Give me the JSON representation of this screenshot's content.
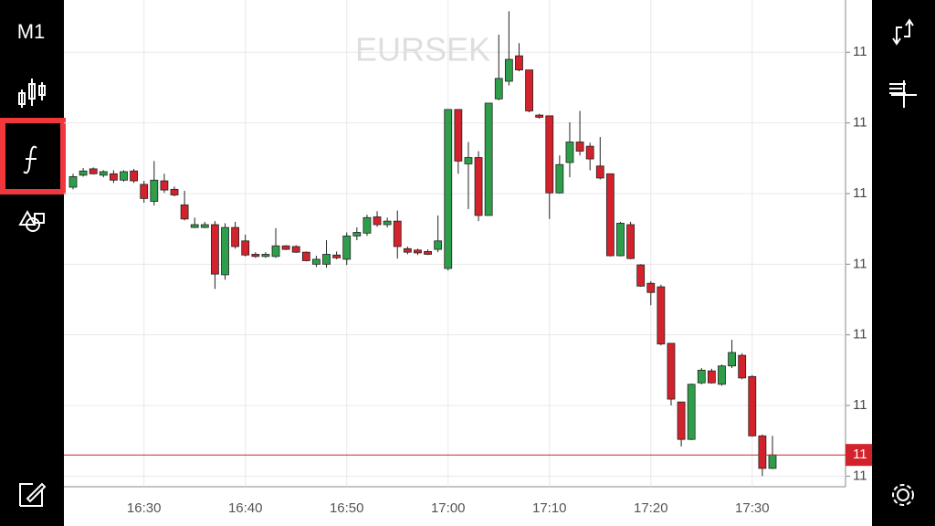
{
  "toolbar": {
    "timeframe": "M1"
  },
  "chart_data": {
    "type": "candlestick",
    "title": "EURSEK",
    "up_color": "#2f9e4a",
    "down_color": "#d3222b",
    "grid": true,
    "ylim": [
      11.0585,
      11.1274
    ],
    "yticks": [
      {
        "value": 11.12,
        "label": "11"
      },
      {
        "value": 11.11,
        "label": "11"
      },
      {
        "value": 11.1,
        "label": "11"
      },
      {
        "value": 11.09,
        "label": "11"
      },
      {
        "value": 11.08,
        "label": "11"
      },
      {
        "value": 11.07,
        "label": "11"
      },
      {
        "value": 11.06,
        "label": "11"
      }
    ],
    "current_price": {
      "value": 11.063,
      "label": "11",
      "color": "#d3222b"
    },
    "categories": [
      null,
      null,
      null,
      null,
      null,
      null,
      null,
      "16:30",
      null,
      null,
      null,
      null,
      null,
      null,
      null,
      null,
      null,
      "16:40",
      null,
      null,
      null,
      null,
      null,
      null,
      null,
      null,
      null,
      "16:50",
      null,
      null,
      null,
      null,
      null,
      null,
      null,
      null,
      null,
      "17:00",
      null,
      null,
      null,
      null,
      null,
      null,
      null,
      null,
      null,
      "17:10",
      null,
      null,
      null,
      null,
      null,
      null,
      null,
      null,
      null,
      "17:20",
      null,
      null,
      null,
      null,
      null,
      null,
      null,
      null,
      null,
      "17:30",
      null,
      null
    ],
    "open": [
      11.1009,
      11.1026,
      11.1035,
      11.1026,
      11.1028,
      11.1019,
      11.1032,
      11.1013,
      11.0989,
      11.1018,
      11.1006,
      11.0984,
      11.0952,
      11.0952,
      11.0956,
      11.0885,
      11.0952,
      11.0933,
      11.0914,
      11.0911,
      11.0911,
      11.0926,
      11.0925,
      11.0917,
      11.09,
      11.09,
      11.0913,
      11.0907,
      11.094,
      11.0944,
      11.0967,
      11.0956,
      11.0961,
      11.0922,
      11.092,
      11.0918,
      11.0921,
      11.0894,
      11.1119,
      11.1042,
      11.1051,
      11.0969,
      11.1134,
      11.1159,
      11.1195,
      11.1175,
      11.1111,
      11.111,
      11.1001,
      11.1044,
      11.1073,
      11.1067,
      11.1039,
      11.1028,
      11.0912,
      11.0956,
      11.0899,
      11.0873,
      11.0868,
      11.0788,
      11.0705,
      11.0652,
      11.0732,
      11.0749,
      11.073,
      11.0756,
      11.0771,
      11.0741,
      11.0657,
      11.0611
    ],
    "high": [
      11.1028,
      11.1036,
      11.1037,
      11.1033,
      11.1033,
      11.1033,
      11.1035,
      11.1018,
      11.1046,
      11.1028,
      11.101,
      11.1004,
      11.0966,
      11.096,
      11.0961,
      11.0958,
      11.096,
      11.0942,
      11.0917,
      11.0917,
      11.0951,
      11.0927,
      11.0927,
      11.0918,
      11.0912,
      11.0934,
      11.0918,
      11.0945,
      11.0952,
      11.097,
      11.0975,
      11.0966,
      11.0976,
      11.0925,
      11.0922,
      11.0921,
      11.0969,
      11.1119,
      11.1119,
      11.1073,
      11.106,
      11.1128,
      11.1225,
      11.1258,
      11.1213,
      11.1175,
      11.1113,
      11.111,
      11.1054,
      11.1101,
      11.1117,
      11.1072,
      11.108,
      11.1028,
      11.096,
      11.096,
      11.09,
      11.0876,
      11.0871,
      11.0788,
      11.0705,
      11.0731,
      11.0753,
      11.0752,
      11.0758,
      11.0793,
      11.0774,
      11.0743,
      11.0659,
      11.0657
    ],
    "low": [
      11.1006,
      11.1024,
      11.1027,
      11.1023,
      11.1015,
      11.1017,
      11.1015,
      11.0987,
      11.0983,
      11.1001,
      11.0996,
      11.0962,
      11.0951,
      11.0951,
      11.0865,
      11.0878,
      11.0922,
      11.0911,
      11.0909,
      11.0909,
      11.0909,
      11.092,
      11.0916,
      11.0904,
      11.0896,
      11.0895,
      11.0907,
      11.0899,
      11.0934,
      11.094,
      11.0953,
      11.0952,
      11.0908,
      11.0914,
      11.0913,
      11.0913,
      11.0917,
      11.0891,
      11.1028,
      11.0978,
      11.0961,
      11.0969,
      11.1132,
      11.1153,
      11.1173,
      11.1115,
      11.1106,
      11.0964,
      11.1,
      11.1023,
      11.1054,
      11.1033,
      11.102,
      11.0911,
      11.0911,
      11.0907,
      11.0868,
      11.0842,
      11.0785,
      11.07,
      11.0642,
      11.0651,
      11.073,
      11.0731,
      11.0728,
      11.0753,
      11.0737,
      11.0656,
      11.06,
      11.061
    ],
    "close": [
      11.1024,
      11.1032,
      11.1028,
      11.1031,
      11.1019,
      11.1031,
      11.1018,
      11.0993,
      11.1019,
      11.1005,
      11.0998,
      11.0964,
      11.0956,
      11.0956,
      11.0886,
      11.0952,
      11.0925,
      11.0913,
      11.0911,
      11.0914,
      11.0926,
      11.0921,
      11.0917,
      11.0905,
      11.0907,
      11.0914,
      11.0909,
      11.094,
      11.0945,
      11.0966,
      11.0956,
      11.0961,
      11.0925,
      11.0917,
      11.0916,
      11.0914,
      11.0933,
      11.1119,
      11.1046,
      11.1051,
      11.0969,
      11.1128,
      11.1163,
      11.119,
      11.1175,
      11.1117,
      11.1108,
      11.1001,
      11.1041,
      11.1073,
      11.106,
      11.1049,
      11.1022,
      11.0912,
      11.0958,
      11.0908,
      11.0869,
      11.086,
      11.0787,
      11.0709,
      11.0652,
      11.073,
      11.075,
      11.0732,
      11.0756,
      11.0775,
      11.0739,
      11.0657,
      11.0611,
      11.063
    ]
  }
}
